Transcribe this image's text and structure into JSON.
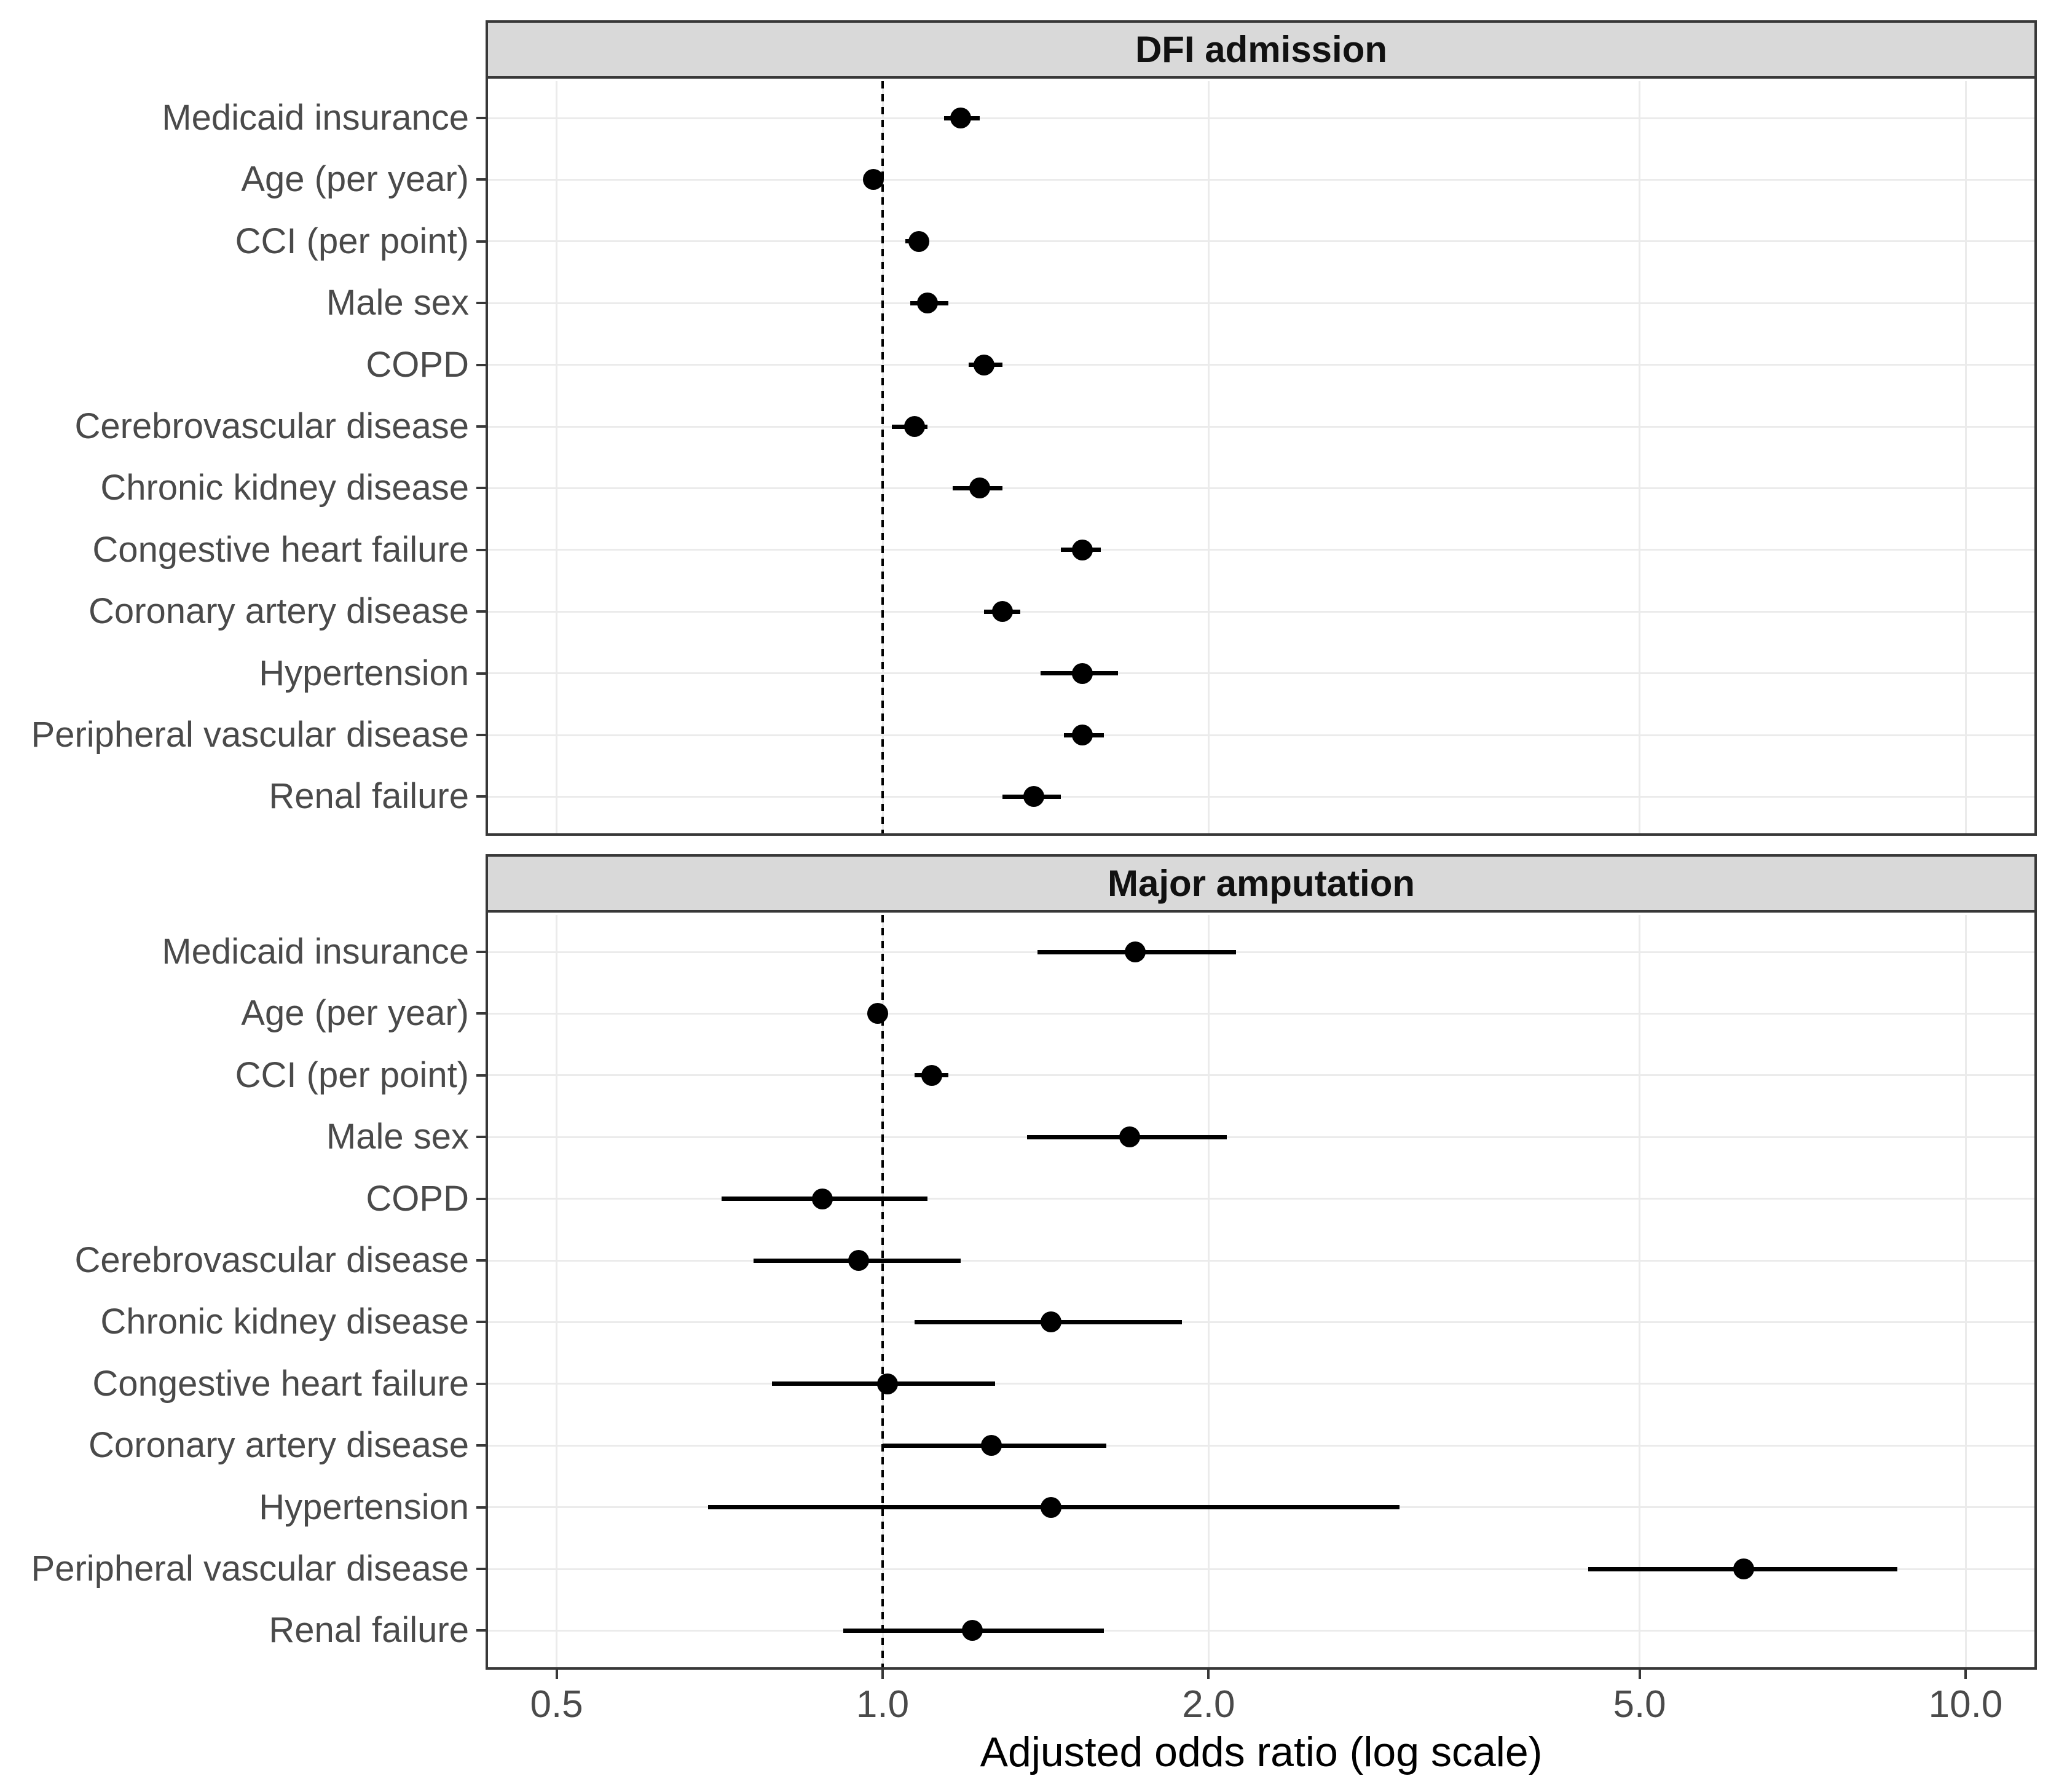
{
  "chart_data": {
    "type": "scatter",
    "subtype": "forest-plot-pointrange",
    "xlabel": "Adjusted odds ratio (log scale)",
    "xscale": "log10",
    "xlim": [
      0.43,
      11.6
    ],
    "reference_line": 1.0,
    "grid": "major-only",
    "legend": "none",
    "x_ticks": [
      {
        "v": 0.5,
        "label": "0.5"
      },
      {
        "v": 1.0,
        "label": "1.0"
      },
      {
        "v": 2.0,
        "label": "2.0"
      },
      {
        "v": 5.0,
        "label": "5.0"
      },
      {
        "v": 10.0,
        "label": "10.0"
      }
    ],
    "panels": [
      {
        "title": "DFI admission",
        "rows": [
          {
            "label": "Medicaid insurance",
            "or": 1.18,
            "lo": 1.14,
            "hi": 1.23
          },
          {
            "label": "Age (per year)",
            "or": 0.98,
            "lo": 0.96,
            "hi": 0.99
          },
          {
            "label": "CCI (per point)",
            "or": 1.08,
            "lo": 1.05,
            "hi": 1.1
          },
          {
            "label": "Male sex",
            "or": 1.1,
            "lo": 1.06,
            "hi": 1.15
          },
          {
            "label": "COPD",
            "or": 1.24,
            "lo": 1.2,
            "hi": 1.29
          },
          {
            "label": "Cerebrovascular disease",
            "or": 1.07,
            "lo": 1.02,
            "hi": 1.1
          },
          {
            "label": "Chronic kidney disease",
            "or": 1.23,
            "lo": 1.16,
            "hi": 1.29
          },
          {
            "label": "Congestive heart failure",
            "or": 1.53,
            "lo": 1.46,
            "hi": 1.59
          },
          {
            "label": "Coronary artery disease",
            "or": 1.29,
            "lo": 1.24,
            "hi": 1.34
          },
          {
            "label": "Hypertension",
            "or": 1.53,
            "lo": 1.4,
            "hi": 1.65
          },
          {
            "label": "Peripheral vascular disease",
            "or": 1.53,
            "lo": 1.47,
            "hi": 1.6
          },
          {
            "label": "Renal failure",
            "or": 1.38,
            "lo": 1.29,
            "hi": 1.46
          }
        ]
      },
      {
        "title": "Major amputation",
        "rows": [
          {
            "label": "Medicaid insurance",
            "or": 1.71,
            "lo": 1.39,
            "hi": 2.12
          },
          {
            "label": "Age (per year)",
            "or": 0.99,
            "lo": 0.97,
            "hi": 1.01
          },
          {
            "label": "CCI (per point)",
            "or": 1.11,
            "lo": 1.07,
            "hi": 1.15
          },
          {
            "label": "Male sex",
            "or": 1.69,
            "lo": 1.36,
            "hi": 2.08
          },
          {
            "label": "COPD",
            "or": 0.88,
            "lo": 0.71,
            "hi": 1.1
          },
          {
            "label": "Cerebrovascular disease",
            "or": 0.95,
            "lo": 0.76,
            "hi": 1.18
          },
          {
            "label": "Chronic kidney disease",
            "or": 1.43,
            "lo": 1.07,
            "hi": 1.89
          },
          {
            "label": "Congestive heart failure",
            "or": 1.01,
            "lo": 0.79,
            "hi": 1.27
          },
          {
            "label": "Coronary artery disease",
            "or": 1.26,
            "lo": 1.0,
            "hi": 1.61
          },
          {
            "label": "Hypertension",
            "or": 1.43,
            "lo": 0.69,
            "hi": 3.0
          },
          {
            "label": "Peripheral vascular disease",
            "or": 6.24,
            "lo": 4.48,
            "hi": 8.65
          },
          {
            "label": "Renal failure",
            "or": 1.21,
            "lo": 0.92,
            "hi": 1.6
          }
        ]
      }
    ],
    "colors": {
      "strip_fill": "#d9d9d9",
      "panel_border": "#383838",
      "gridline": "#ebebeb",
      "axis_text": "#4a4a4a",
      "marks": "#000000",
      "background": "#ffffff"
    }
  }
}
